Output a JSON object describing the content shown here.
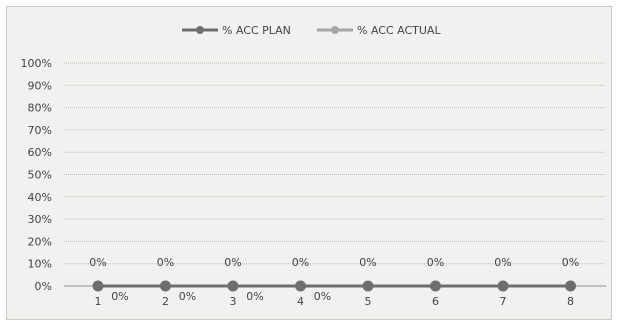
{
  "chart_data": {
    "type": "line",
    "title": "",
    "xlabel": "",
    "ylabel": "",
    "categories": [
      "1",
      "2",
      "3",
      "4",
      "5",
      "6",
      "7",
      "8"
    ],
    "y_ticks": [
      "0%",
      "10%",
      "20%",
      "30%",
      "40%",
      "50%",
      "60%",
      "70%",
      "80%",
      "90%",
      "100%"
    ],
    "ylim": [
      0,
      100
    ],
    "grid": true,
    "legend_position": "top-center",
    "series": [
      {
        "name": "% ACC PLAN",
        "values": [
          0,
          0,
          0,
          0,
          0,
          0,
          0,
          0
        ],
        "data_labels": [
          "0%",
          "0%",
          "0%",
          "0%",
          "0%",
          "0%",
          "0%",
          "0%"
        ],
        "color": "#6e6e6e"
      },
      {
        "name": "% ACC ACTUAL",
        "values": [
          0,
          0,
          0,
          0,
          0,
          0,
          0,
          0
        ],
        "data_labels": [
          "0%",
          "0%",
          "0%",
          "0%"
        ],
        "color": "#a6a6a6"
      }
    ]
  }
}
